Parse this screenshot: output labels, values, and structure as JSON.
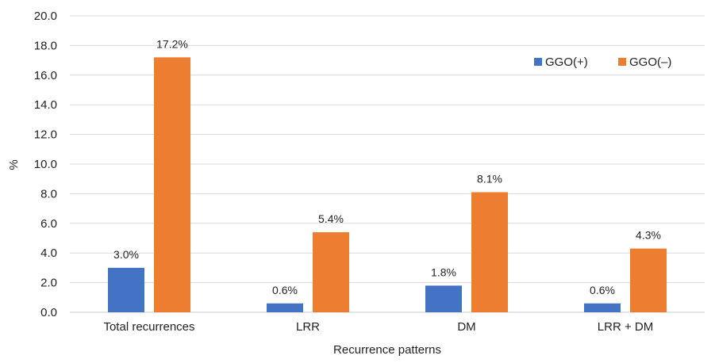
{
  "chart_data": {
    "type": "bar",
    "title": "",
    "xlabel": "Recurrence patterns",
    "ylabel": "%",
    "ylim": [
      0,
      20
    ],
    "yticks": [
      "0.0",
      "2.0",
      "4.0",
      "6.0",
      "8.0",
      "10.0",
      "12.0",
      "14.0",
      "16.0",
      "18.0",
      "20.0"
    ],
    "grid": true,
    "legend_position": "top-right",
    "categories": [
      "Total recurrences",
      "LRR",
      "DM",
      "LRR + DM"
    ],
    "series": [
      {
        "name": "GGO(+)",
        "color": "#4472c4",
        "values": [
          3.0,
          0.6,
          1.8,
          0.6
        ],
        "labels": [
          "3.0%",
          "0.6%",
          "1.8%",
          "0.6%"
        ]
      },
      {
        "name": "GGO(–)",
        "color": "#ed7d31",
        "values": [
          17.2,
          5.4,
          8.1,
          4.3
        ],
        "labels": [
          "17.2%",
          "5.4%",
          "8.1%",
          "4.3%"
        ]
      }
    ]
  }
}
